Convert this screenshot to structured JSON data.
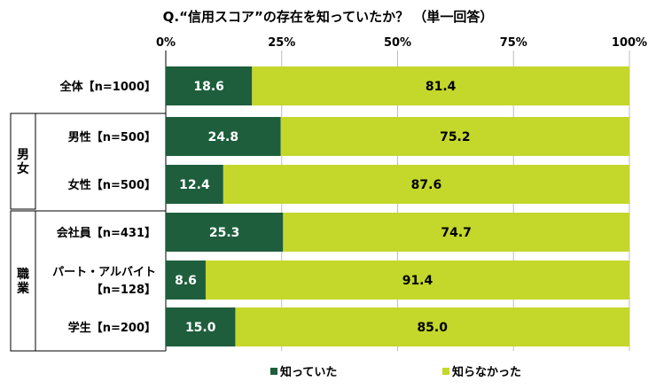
{
  "chart_data": {
    "type": "bar",
    "orientation": "horizontal",
    "stacked": true,
    "title": "Q.“信用スコア”の存在を知っていたか？ （単一回答）",
    "xlim": [
      0,
      100
    ],
    "x_ticks": [
      "0%",
      "25%",
      "50%",
      "75%",
      "100%"
    ],
    "groups": [
      {
        "label": "",
        "rows": [
          0
        ]
      },
      {
        "label": "男女",
        "rows": [
          1,
          2
        ]
      },
      {
        "label": "職業",
        "rows": [
          3,
          4,
          5
        ]
      }
    ],
    "categories": [
      [
        "全体【n=1000】"
      ],
      [
        "男性【n=500】"
      ],
      [
        "女性【n=500】"
      ],
      [
        "会社員【n=431】"
      ],
      [
        "パート・アルバイト",
        "【n=128】"
      ],
      [
        "学生【n=200】"
      ]
    ],
    "series": [
      {
        "name": "知っていた",
        "color": "#1e5e3d",
        "label_color": "#ffffff",
        "values": [
          18.6,
          24.8,
          12.4,
          25.3,
          8.6,
          15.0
        ],
        "labels": [
          "18.6",
          "24.8",
          "12.4",
          "25.3",
          "8.6",
          "15.0"
        ]
      },
      {
        "name": "知らなかった",
        "color": "#c4d72b",
        "label_color": "#000000",
        "values": [
          81.4,
          75.2,
          87.6,
          74.7,
          91.4,
          85.0
        ],
        "labels": [
          "81.4",
          "75.2",
          "87.6",
          "74.7",
          "91.4",
          "85.0"
        ]
      }
    ],
    "legend_position": "bottom-center"
  }
}
